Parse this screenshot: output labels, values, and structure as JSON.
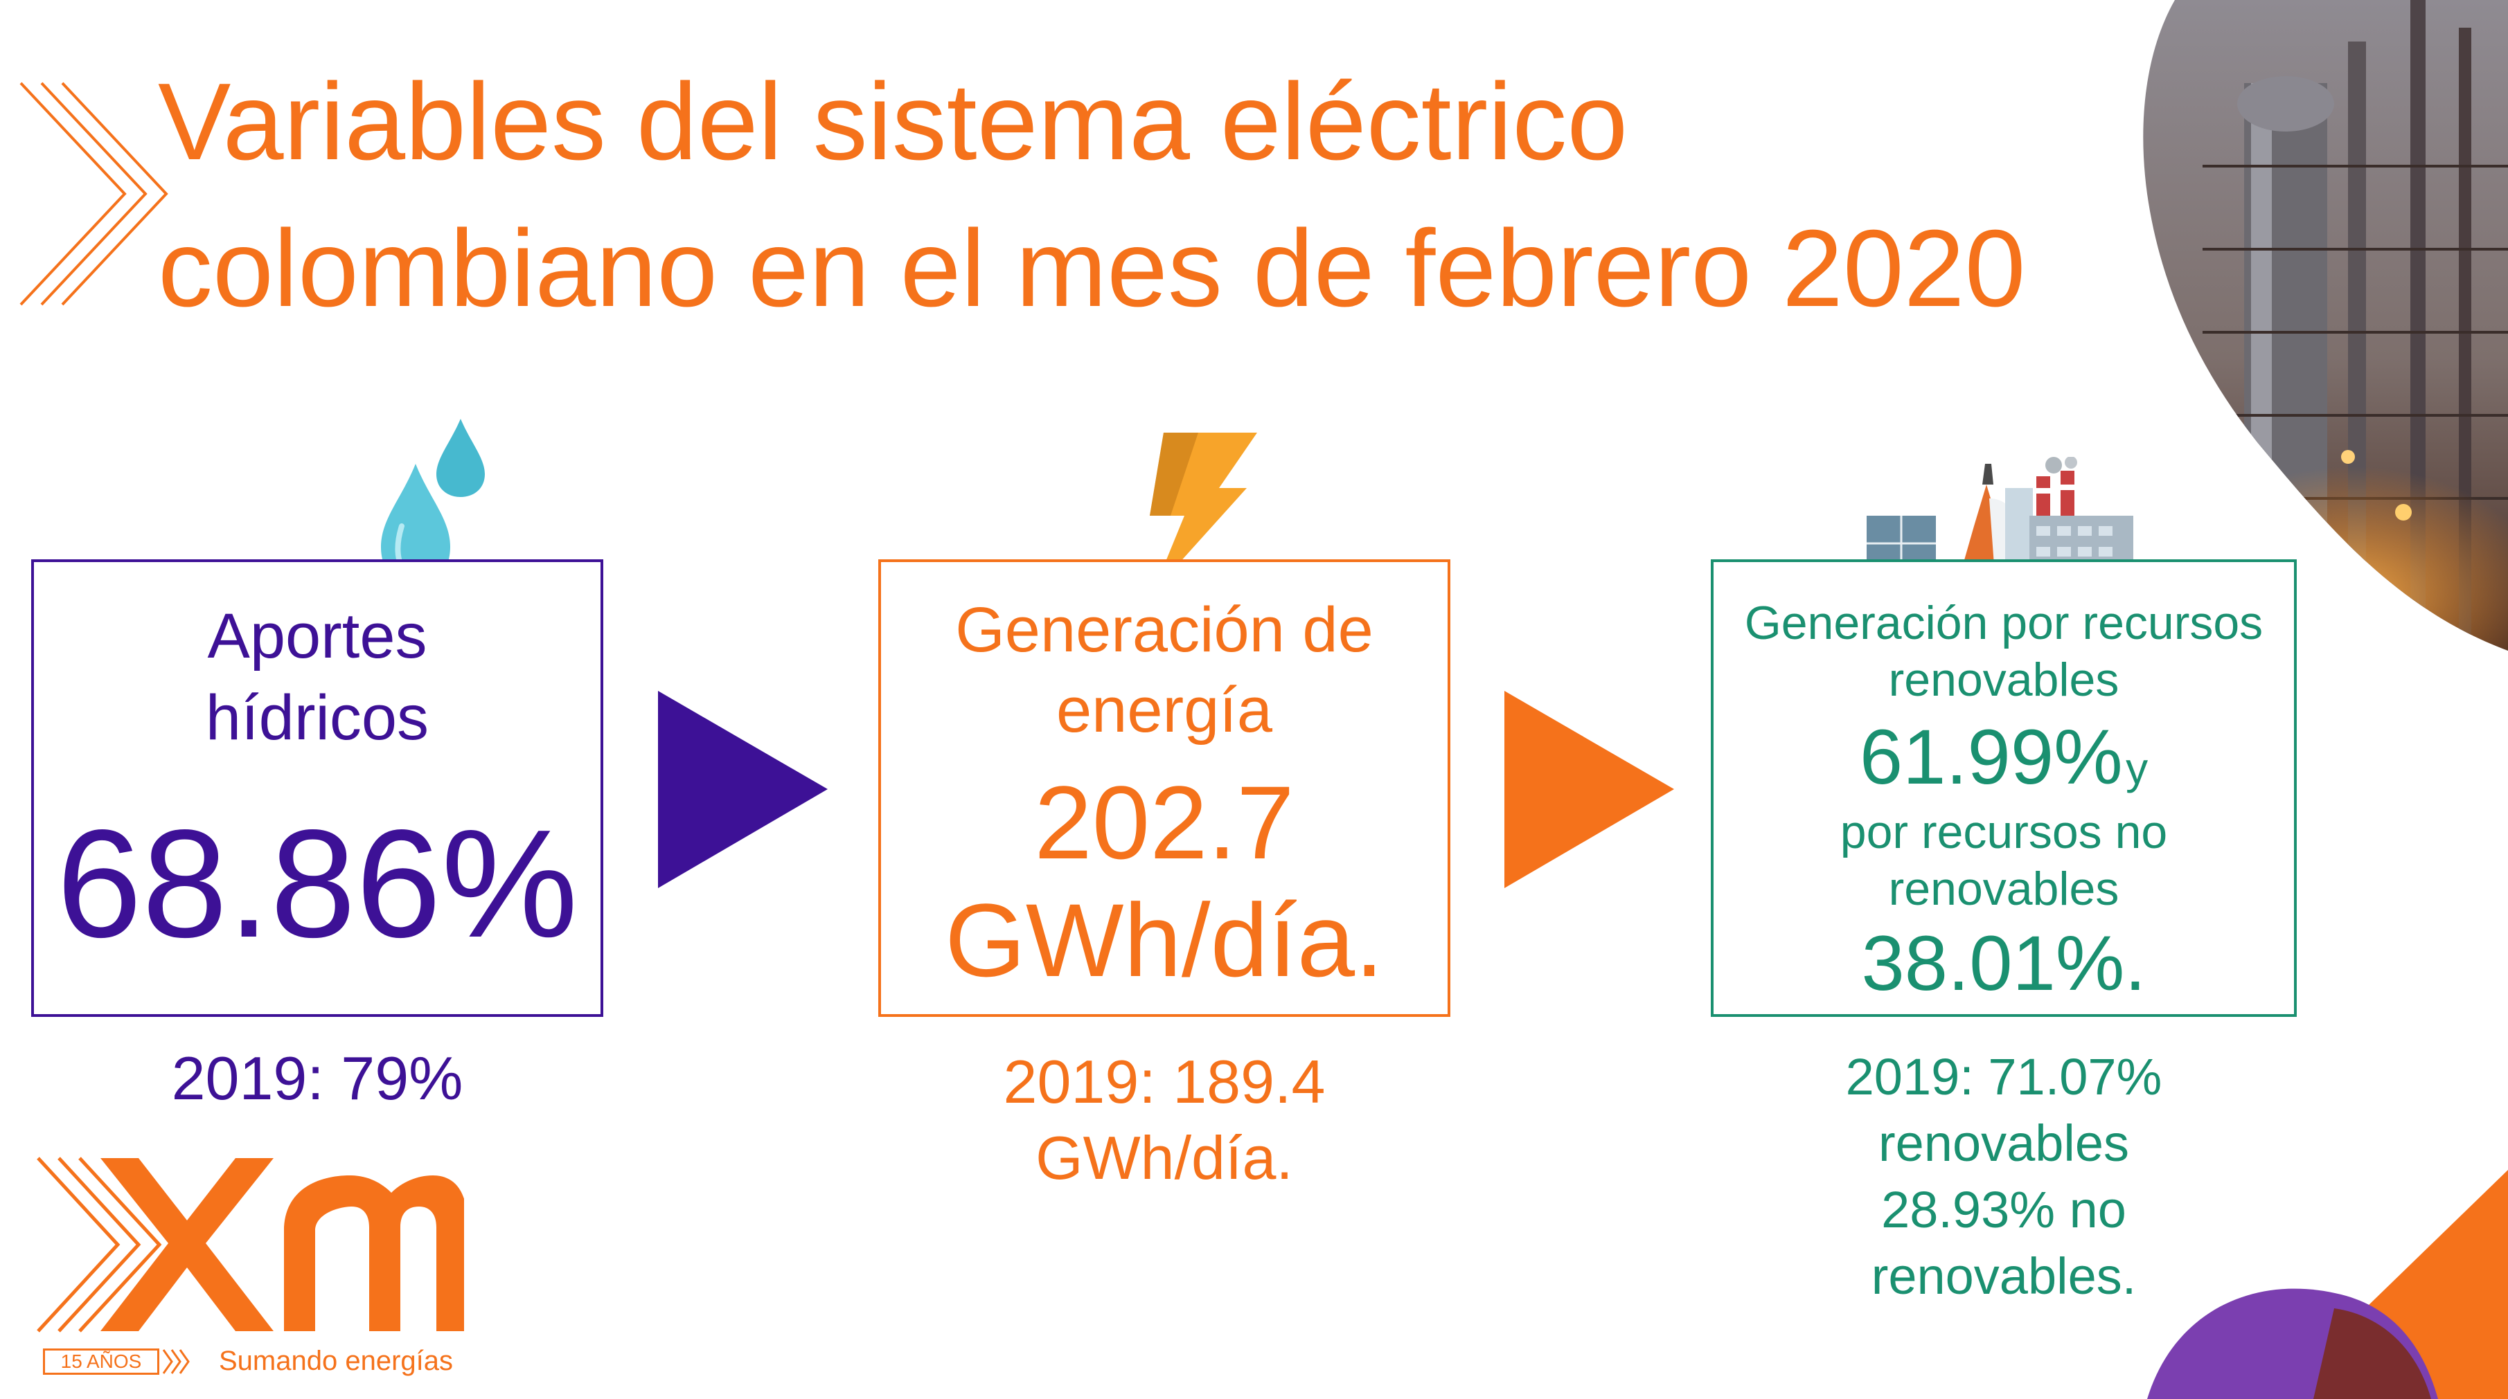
{
  "title": {
    "line1": "Variables del sistema eléctrico",
    "line2": "colombiano en el mes de febrero 2020"
  },
  "cards": [
    {
      "label_line1": "Aportes",
      "label_line2": "hídricos",
      "value": "68.86%",
      "icon": "water-drops-icon",
      "note_line1": "2019: 79%"
    },
    {
      "label_line1": "Generación de",
      "label_line2": "energía",
      "value_line1": "202.7",
      "value_line2": "GWh/día.",
      "icon": "lightning-bolt-icon",
      "note_line1": "2019:  189.4",
      "note_line2": "GWh/día."
    },
    {
      "label_line1": "Generación por recursos",
      "label_line2": "renovables",
      "value1": "61.99%",
      "connector": "y",
      "label_line3": "por recursos no",
      "label_line4": "renovables",
      "value2": "38.01%.",
      "icon": "power-plants-icon",
      "note_line1": "2019:  71.07%",
      "note_line2": "renovables",
      "note_line3": "28.93% no",
      "note_line4": "renovables."
    }
  ],
  "logo": {
    "years_badge": "15 AÑOS",
    "tagline": "Sumando energías"
  },
  "colors": {
    "orange": "#f5721b",
    "purple": "#3d1196",
    "green": "#1a9070"
  }
}
